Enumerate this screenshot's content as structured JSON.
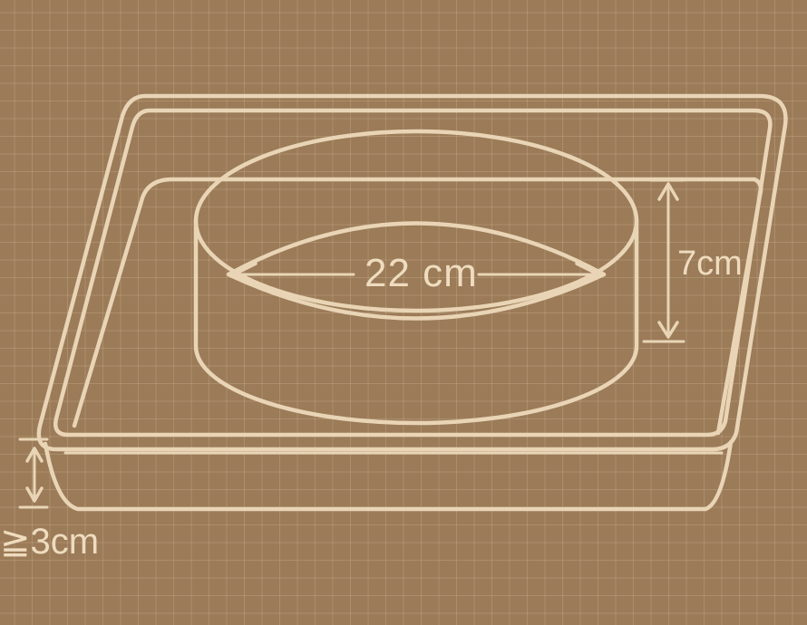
{
  "diagram": {
    "cake_pan_diameter": "22 cm",
    "cake_pan_height": "7cm",
    "tray_depth": "≧3cm",
    "colors": {
      "background": "#9b7b58",
      "line": "#e9d5b6",
      "text": "#efdcbf"
    }
  }
}
